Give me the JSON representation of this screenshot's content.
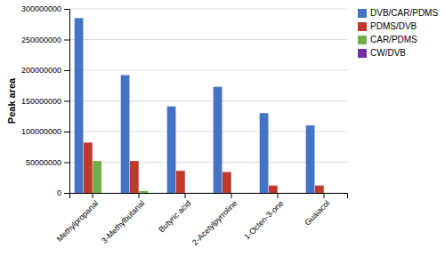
{
  "chart_data": {
    "type": "bar",
    "categories": [
      "Methylpropanal",
      "3-Methylbutanal",
      "Butyric acid",
      "2-Acetylpyrroline",
      "1-Octen-3-one",
      "Guaiacol"
    ],
    "series": [
      {
        "name": "DVB/CAR/PDMS",
        "color": "#4472C4",
        "values": [
          285000000,
          192000000,
          141000000,
          173000000,
          130000000,
          110000000
        ]
      },
      {
        "name": "PDMS/DVB",
        "color": "#C0392B",
        "values": [
          82000000,
          52000000,
          36000000,
          34000000,
          12000000,
          12000000
        ]
      },
      {
        "name": "CAR/PDMS",
        "color": "#70AD47",
        "values": [
          52000000,
          3000000,
          0,
          0,
          0,
          0
        ]
      },
      {
        "name": "CW/DVB",
        "color": "#7030A0",
        "values": [
          0,
          0,
          0,
          0,
          0,
          0
        ]
      }
    ],
    "ylabel": "Peak area",
    "ylim": [
      0,
      300000000
    ],
    "yticks": [
      0,
      50000000,
      100000000,
      150000000,
      200000000,
      250000000,
      300000000
    ],
    "grid": true,
    "legend": "upper right"
  }
}
